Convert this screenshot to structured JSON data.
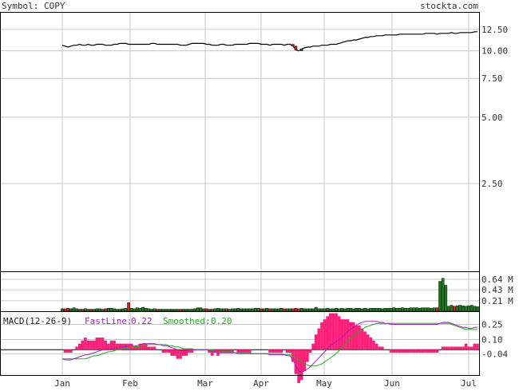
{
  "header": {
    "symbol_text": "Symbol: COPY",
    "site_text": "stockta.com"
  },
  "colors": {
    "background": "#ffffff",
    "grid": "#c8c8c8",
    "frame": "#000000",
    "text": "#333333",
    "up_bar": "#1f7a1f",
    "down_bar": "#d42020",
    "fastline": "#a020c0",
    "smoothed": "#22aa22",
    "histogram": "#ff1e78"
  },
  "chart_data": [
    {
      "type": "candlestick",
      "name": "price",
      "x_ticks": [
        "Jan",
        "Feb",
        "Mar",
        "Apr",
        "May",
        "Jun",
        "Jul"
      ],
      "y_scale": "log",
      "y_ticks": [
        12.5,
        10.0,
        7.5,
        5.0,
        2.5
      ],
      "y_tick_labels": [
        "12.50",
        "10.00",
        "7.50",
        "5.00",
        "2.50"
      ],
      "ylim": [
        1.0,
        15.0
      ],
      "grid": true,
      "close": [
        10.6,
        10.5,
        10.4,
        10.5,
        10.6,
        10.6,
        10.7,
        10.6,
        10.6,
        10.7,
        10.6,
        10.6,
        10.7,
        10.7,
        10.7,
        10.6,
        10.6,
        10.6,
        10.7,
        10.7,
        10.8,
        10.8,
        10.8,
        10.7,
        10.7,
        10.7,
        10.7,
        10.7,
        10.7,
        10.7,
        10.7,
        10.8,
        10.8,
        10.7,
        10.7,
        10.7,
        10.7,
        10.7,
        10.7,
        10.7,
        10.7,
        10.6,
        10.6,
        10.6,
        10.7,
        10.8,
        10.8,
        10.8,
        10.8,
        10.8,
        10.7,
        10.7,
        10.6,
        10.6,
        10.6,
        10.7,
        10.7,
        10.6,
        10.6,
        10.6,
        10.7,
        10.7,
        10.7,
        10.7,
        10.7,
        10.8,
        10.8,
        10.8,
        10.8,
        10.7,
        10.7,
        10.7,
        10.6,
        10.7,
        10.7,
        10.7,
        10.7,
        10.6,
        10.7,
        10.7,
        10.5,
        10.1,
        10.0,
        10.2,
        10.3,
        10.4,
        10.4,
        10.5,
        10.5,
        10.5,
        10.6,
        10.6,
        10.6,
        10.7,
        10.7,
        10.7,
        10.8,
        10.9,
        11.0,
        11.1,
        11.1,
        11.2,
        11.2,
        11.3,
        11.4,
        11.5,
        11.5,
        11.6,
        11.6,
        11.7,
        11.7,
        11.7,
        11.8,
        11.8,
        11.8,
        11.8,
        11.8,
        11.9,
        11.9,
        11.9,
        11.9,
        11.9,
        11.9,
        11.9,
        11.9,
        11.9,
        12.0,
        12.0,
        12.0,
        12.0,
        11.9,
        12.0,
        12.0,
        12.0,
        12.0,
        12.1,
        12.0,
        12.0,
        12.1,
        12.1,
        12.1,
        12.1,
        12.1,
        12.2,
        12.2
      ]
    },
    {
      "type": "bar",
      "name": "volume",
      "y_ticks": [
        0.64,
        0.43,
        0.21
      ],
      "y_tick_labels": [
        "0.64 M",
        "0.43 M",
        "0.21 M"
      ],
      "ylim": [
        0,
        0.8
      ],
      "grid": true,
      "values": [
        0.05,
        0.05,
        0.06,
        0.05,
        0.07,
        0.05,
        0.04,
        0.04,
        0.05,
        0.04,
        0.04,
        0.04,
        0.05,
        0.05,
        0.04,
        0.05,
        0.06,
        0.06,
        0.05,
        0.04,
        0.04,
        0.05,
        0.06,
        0.17,
        0.06,
        0.05,
        0.07,
        0.06,
        0.08,
        0.06,
        0.05,
        0.04,
        0.05,
        0.04,
        0.04,
        0.04,
        0.04,
        0.04,
        0.04,
        0.04,
        0.04,
        0.04,
        0.04,
        0.04,
        0.04,
        0.04,
        0.05,
        0.07,
        0.07,
        0.05,
        0.05,
        0.04,
        0.04,
        0.05,
        0.06,
        0.05,
        0.05,
        0.05,
        0.04,
        0.05,
        0.05,
        0.06,
        0.05,
        0.05,
        0.05,
        0.05,
        0.05,
        0.06,
        0.06,
        0.05,
        0.05,
        0.06,
        0.05,
        0.05,
        0.05,
        0.05,
        0.06,
        0.05,
        0.05,
        0.05,
        0.05,
        0.06,
        0.05,
        0.06,
        0.05,
        0.05,
        0.05,
        0.05,
        0.08,
        0.05,
        0.05,
        0.05,
        0.06,
        0.05,
        0.05,
        0.06,
        0.05,
        0.06,
        0.05,
        0.06,
        0.06,
        0.05,
        0.06,
        0.06,
        0.05,
        0.06,
        0.05,
        0.06,
        0.06,
        0.06,
        0.06,
        0.05,
        0.06,
        0.06,
        0.06,
        0.07,
        0.06,
        0.06,
        0.07,
        0.06,
        0.06,
        0.07,
        0.07,
        0.07,
        0.06,
        0.07,
        0.07,
        0.07,
        0.06,
        0.07,
        0.07,
        0.6,
        0.66,
        0.52,
        0.1,
        0.12,
        0.1,
        0.11,
        0.12,
        0.11,
        0.1,
        0.11,
        0.12,
        0.1,
        0.09
      ]
    },
    {
      "type": "line",
      "name": "macd",
      "title": "MACD(12-26-9)",
      "series_labels": {
        "fast_label": "FastLine:",
        "fast_value": "0.22",
        "smooth_label": "Smoothed:",
        "smooth_value": "0.20"
      },
      "y_ticks": [
        0.25,
        0.1,
        -0.04
      ],
      "y_tick_labels": [
        "0.25",
        "0.10",
        "-0.04"
      ],
      "ylim": [
        -0.25,
        0.38
      ],
      "grid": true,
      "fastline": [
        -0.09,
        -0.1,
        -0.1,
        -0.1,
        -0.09,
        -0.08,
        -0.07,
        -0.06,
        -0.05,
        -0.05,
        -0.04,
        -0.03,
        -0.02,
        -0.01,
        0.0,
        0.0,
        0.0,
        0.01,
        0.02,
        0.02,
        0.02,
        0.03,
        0.03,
        0.04,
        0.04,
        0.04,
        0.04,
        0.05,
        0.06,
        0.06,
        0.06,
        0.06,
        0.06,
        0.05,
        0.05,
        0.04,
        0.04,
        0.03,
        0.02,
        0.01,
        0.0,
        -0.01,
        -0.01,
        -0.01,
        0.0,
        0.0,
        0.0,
        0.0,
        0.0,
        0.0,
        0.0,
        -0.01,
        -0.02,
        -0.02,
        -0.03,
        -0.03,
        -0.03,
        -0.03,
        -0.03,
        -0.03,
        -0.03,
        -0.04,
        -0.04,
        -0.04,
        -0.04,
        -0.04,
        -0.04,
        -0.04,
        -0.04,
        -0.04,
        -0.04,
        -0.04,
        -0.05,
        -0.05,
        -0.05,
        -0.05,
        -0.05,
        -0.05,
        -0.06,
        -0.06,
        -0.1,
        -0.16,
        -0.21,
        -0.22,
        -0.21,
        -0.19,
        -0.17,
        -0.14,
        -0.11,
        -0.08,
        -0.05,
        -0.02,
        0.01,
        0.04,
        0.06,
        0.08,
        0.1,
        0.12,
        0.15,
        0.18,
        0.2,
        0.22,
        0.24,
        0.26,
        0.27,
        0.28,
        0.28,
        0.28,
        0.28,
        0.28,
        0.27,
        0.27,
        0.26,
        0.26,
        0.25,
        0.25,
        0.25,
        0.25,
        0.25,
        0.25,
        0.25,
        0.25,
        0.25,
        0.25,
        0.25,
        0.25,
        0.25,
        0.25,
        0.25,
        0.25,
        0.25,
        0.26,
        0.27,
        0.27,
        0.27,
        0.26,
        0.25,
        0.24,
        0.23,
        0.22,
        0.22,
        0.21,
        0.21,
        0.22,
        0.22
      ],
      "smoothed": [
        -0.09,
        -0.09,
        -0.09,
        -0.09,
        -0.09,
        -0.09,
        -0.09,
        -0.09,
        -0.09,
        -0.08,
        -0.07,
        -0.06,
        -0.06,
        -0.05,
        -0.04,
        -0.03,
        -0.02,
        -0.02,
        -0.01,
        0.0,
        0.0,
        0.01,
        0.01,
        0.02,
        0.02,
        0.03,
        0.03,
        0.03,
        0.04,
        0.04,
        0.05,
        0.05,
        0.05,
        0.05,
        0.05,
        0.05,
        0.05,
        0.04,
        0.04,
        0.03,
        0.03,
        0.02,
        0.01,
        0.01,
        0.01,
        0.01,
        0.0,
        0.0,
        0.0,
        0.0,
        0.0,
        0.0,
        0.0,
        -0.01,
        -0.01,
        -0.02,
        -0.02,
        -0.02,
        -0.02,
        -0.02,
        -0.03,
        -0.03,
        -0.03,
        -0.03,
        -0.03,
        -0.03,
        -0.04,
        -0.04,
        -0.04,
        -0.04,
        -0.04,
        -0.04,
        -0.04,
        -0.04,
        -0.04,
        -0.04,
        -0.04,
        -0.05,
        -0.05,
        -0.05,
        -0.06,
        -0.08,
        -0.1,
        -0.12,
        -0.14,
        -0.15,
        -0.16,
        -0.16,
        -0.16,
        -0.15,
        -0.14,
        -0.12,
        -0.1,
        -0.08,
        -0.06,
        -0.04,
        -0.01,
        0.02,
        0.05,
        0.08,
        0.11,
        0.13,
        0.16,
        0.18,
        0.2,
        0.22,
        0.23,
        0.24,
        0.25,
        0.26,
        0.26,
        0.26,
        0.26,
        0.26,
        0.26,
        0.26,
        0.26,
        0.26,
        0.26,
        0.26,
        0.26,
        0.26,
        0.26,
        0.26,
        0.26,
        0.26,
        0.26,
        0.26,
        0.26,
        0.26,
        0.26,
        0.26,
        0.26,
        0.26,
        0.26,
        0.25,
        0.24,
        0.23,
        0.22,
        0.21,
        0.2,
        0.2,
        0.2,
        0.2,
        0.2
      ]
    }
  ]
}
